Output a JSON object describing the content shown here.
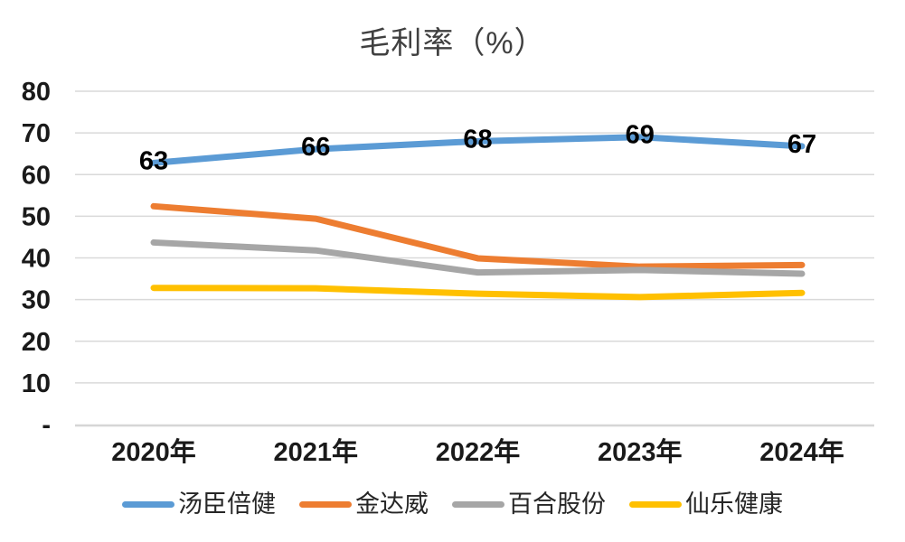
{
  "chart_data": {
    "type": "line",
    "title": "毛利率（%）",
    "categories": [
      "2020年",
      "2021年",
      "2022年",
      "2023年",
      "2024年"
    ],
    "series": [
      {
        "name": "汤臣倍健",
        "color": "#5B9BD5",
        "values": [
          62.8,
          66.1,
          68.0,
          69.0,
          66.8
        ],
        "labels": [
          "63",
          "66",
          "68",
          "69",
          "67"
        ]
      },
      {
        "name": "金达威",
        "color": "#ED7D31",
        "values": [
          52.4,
          49.4,
          39.9,
          37.9,
          38.3
        ]
      },
      {
        "name": "百合股份",
        "color": "#A6A6A6",
        "values": [
          43.7,
          41.8,
          36.5,
          37.1,
          36.2
        ]
      },
      {
        "name": "仙乐健康",
        "color": "#FFC000",
        "values": [
          32.8,
          32.7,
          31.4,
          30.6,
          31.6
        ]
      }
    ],
    "ylim": [
      0,
      80
    ],
    "ytick_interval": 10,
    "ytick_labels": [
      "-",
      "10",
      "20",
      "30",
      "40",
      "50",
      "60",
      "70",
      "80"
    ],
    "grid": true,
    "legend_position": "bottom"
  },
  "colors": {
    "gridline": "#D9D9D9",
    "axis_line": "#D6D6D6",
    "tick_text": "#1A1A1A",
    "data_label_text": "#000000",
    "title_text": "#404040",
    "legend_text": "#262626"
  }
}
